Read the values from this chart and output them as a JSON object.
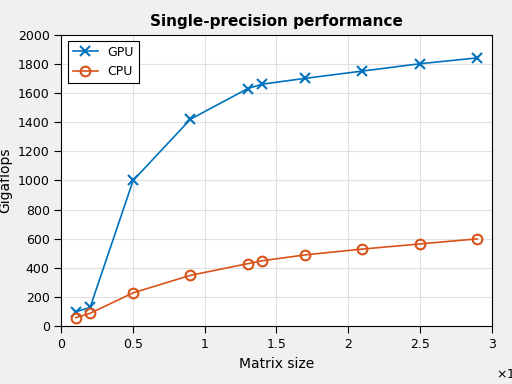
{
  "gpu_x": [
    1000,
    2000,
    5000,
    9000,
    13000,
    14000,
    17000,
    21000,
    25000,
    29000
  ],
  "gpu_y": [
    100,
    130,
    1000,
    1420,
    1630,
    1660,
    1700,
    1750,
    1800,
    1840
  ],
  "cpu_x": [
    1000,
    2000,
    5000,
    9000,
    13000,
    14000,
    17000,
    21000,
    25000,
    29000
  ],
  "cpu_y": [
    60,
    90,
    230,
    350,
    430,
    450,
    490,
    530,
    565,
    600
  ],
  "gpu_color": "#0072BD",
  "cpu_color": "#D95319",
  "title": "Single-precision performance",
  "xlabel": "Matrix size",
  "ylabel": "Gigaflops",
  "xlim": [
    0,
    30000
  ],
  "ylim": [
    0,
    2000
  ],
  "xticks": [
    0,
    5000,
    10000,
    15000,
    20000,
    25000,
    30000
  ],
  "yticks": [
    0,
    200,
    400,
    600,
    800,
    1000,
    1200,
    1400,
    1600,
    1800,
    2000
  ],
  "legend_gpu": "GPU",
  "legend_cpu": "CPU",
  "outer_bg": "#f0f0f0",
  "inner_bg": "#ffffff",
  "grid_color": "#e0e0e0",
  "spine_color": "#000000",
  "title_fontsize": 11,
  "label_fontsize": 10,
  "tick_fontsize": 9,
  "legend_fontsize": 9
}
